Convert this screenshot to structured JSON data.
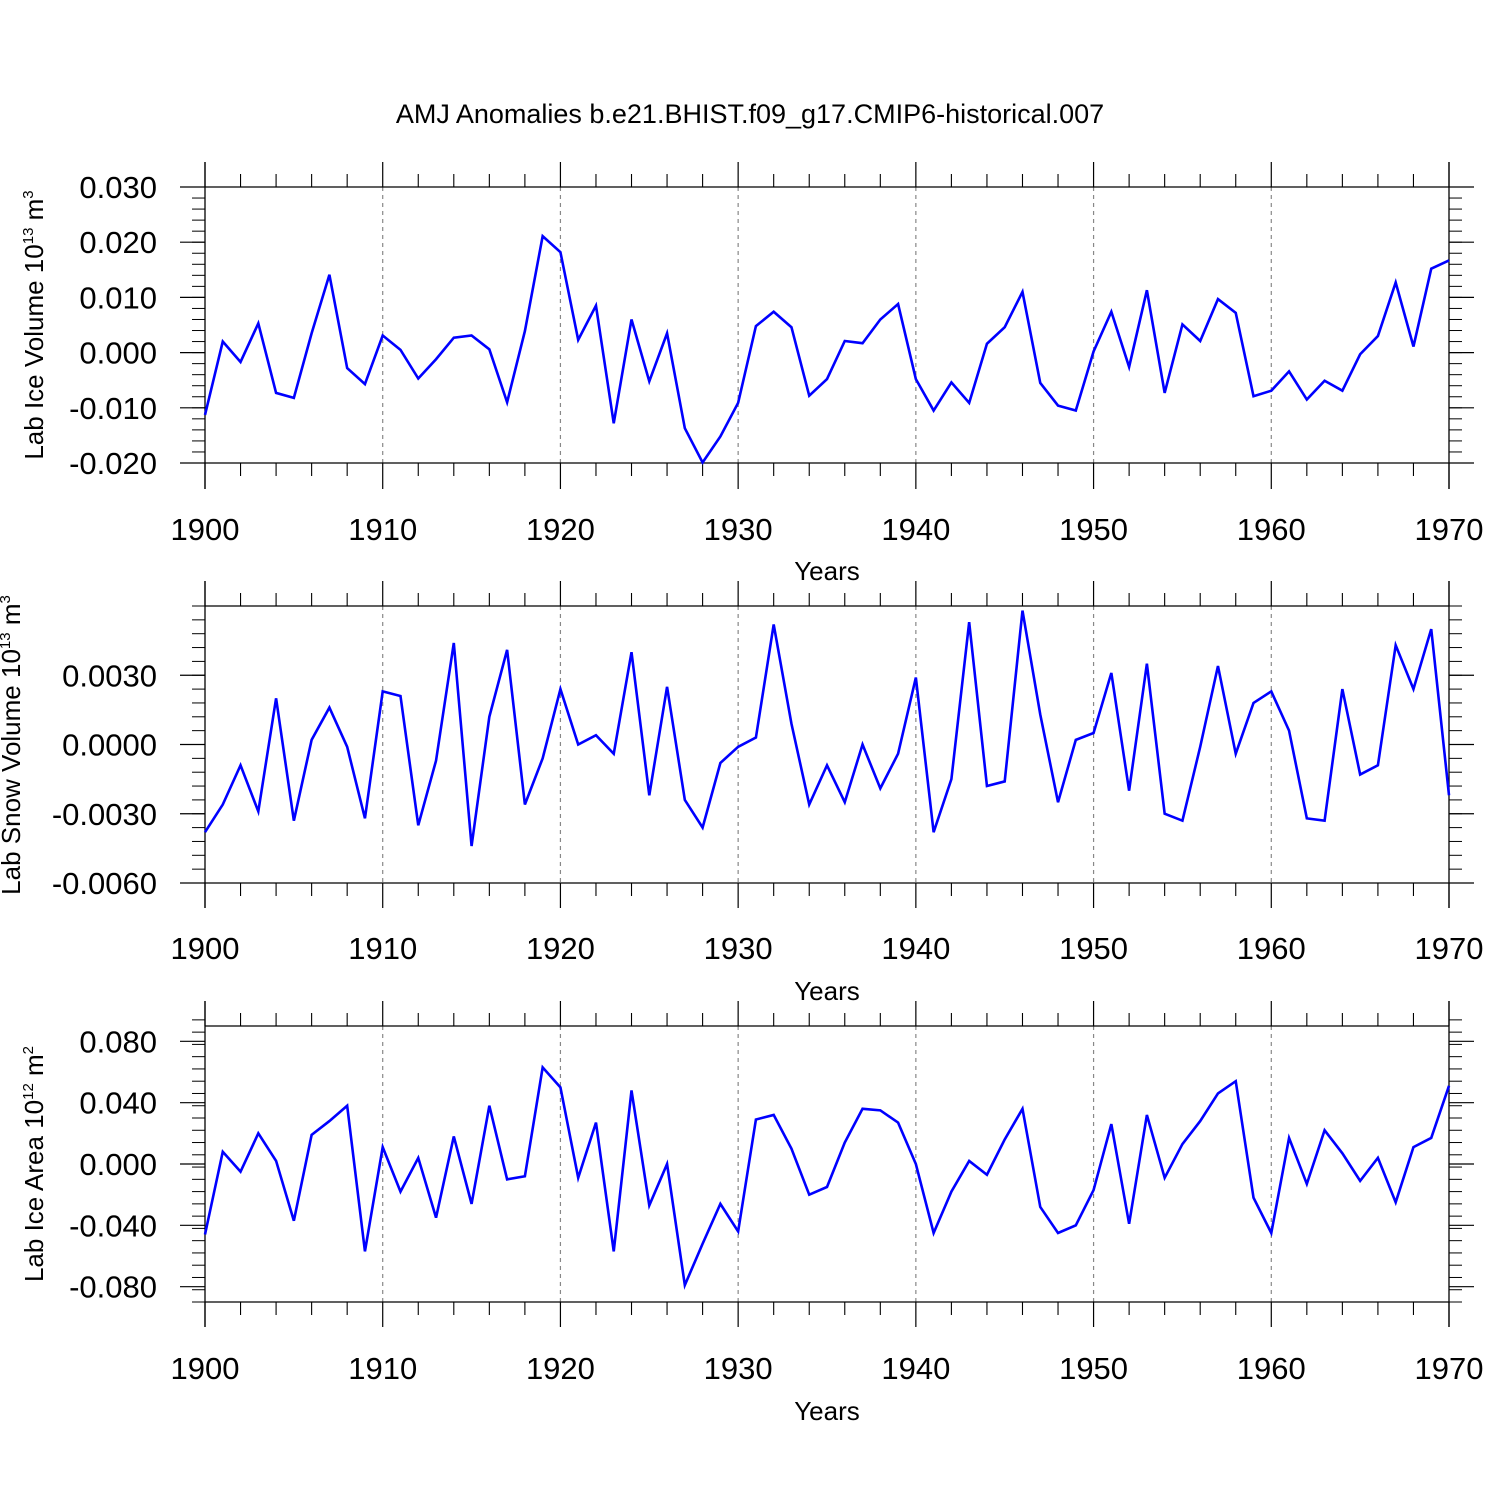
{
  "title": "AMJ Anomalies b.e21.BHIST.f09_g17.CMIP6-historical.007",
  "colors": {
    "line": "#0000ff",
    "axis": "#000000",
    "grid": "#888888"
  },
  "chart_data": [
    {
      "type": "line",
      "xlabel": "Years",
      "ylabel": {
        "main": "Lab Ice Volume 10",
        "exp": "13",
        "unit": " m",
        "unit_exp": "3"
      },
      "xlim": [
        1900,
        1970
      ],
      "ylim": [
        -0.02,
        0.03
      ],
      "x_ticks": [
        "1900",
        "1910",
        "1920",
        "1930",
        "1940",
        "1950",
        "1960",
        "1970"
      ],
      "y_tick_values": [
        -0.02,
        -0.01,
        0.0,
        0.01,
        0.02,
        0.03
      ],
      "y_tick_labels": [
        "-0.020",
        "-0.010",
        "0.000",
        "0.010",
        "0.020",
        "0.030"
      ],
      "y_minor_step": 0.002,
      "x_start": 1900,
      "series": [
        {
          "name": "Lab Ice Volume",
          "values": [
            -0.0113,
            0.002,
            -0.0017,
            0.0053,
            -0.0073,
            -0.0082,
            0.0035,
            0.0141,
            -0.0028,
            -0.0057,
            0.0031,
            0.0005,
            -0.0047,
            -0.0012,
            0.0027,
            0.0031,
            0.0006,
            -0.009,
            0.0039,
            0.0211,
            0.0182,
            0.0023,
            0.0085,
            -0.0128,
            0.006,
            -0.0052,
            0.0035,
            -0.0137,
            -0.0199,
            -0.0152,
            -0.0091,
            0.0048,
            0.0074,
            0.0046,
            -0.0078,
            -0.0048,
            0.0021,
            0.0017,
            0.006,
            0.0088,
            -0.0048,
            -0.0105,
            -0.0054,
            -0.0091,
            0.0016,
            0.0046,
            0.011,
            -0.0055,
            -0.0096,
            -0.0105,
            0.0002,
            0.0074,
            -0.0026,
            0.0113,
            -0.0073,
            0.0051,
            0.0021,
            0.0097,
            0.0072,
            -0.0079,
            -0.0069,
            -0.0034,
            -0.0085,
            -0.0051,
            -0.0069,
            -0.0003,
            0.003,
            0.0127,
            0.0011,
            0.0152,
            0.0167
          ]
        }
      ]
    },
    {
      "type": "line",
      "xlabel": "Years",
      "ylabel": {
        "main": "Lab Snow Volume 10",
        "exp": "13",
        "unit": " m",
        "unit_exp": "3"
      },
      "xlim": [
        1900,
        1970
      ],
      "ylim": [
        -0.006,
        0.006
      ],
      "x_ticks": [
        "1900",
        "1910",
        "1920",
        "1930",
        "1940",
        "1950",
        "1960",
        "1970"
      ],
      "y_tick_values": [
        -0.006,
        -0.003,
        0.0,
        0.003
      ],
      "y_tick_labels": [
        "-0.0060",
        "-0.0030",
        "0.0000",
        "0.0030"
      ],
      "y_minor_step": 0.0006,
      "x_start": 1900,
      "series": [
        {
          "name": "Lab Snow Volume",
          "values": [
            -0.0038,
            -0.0026,
            -0.0009,
            -0.0029,
            0.002,
            -0.0033,
            0.0002,
            0.0016,
            -0.0001,
            -0.0032,
            0.0023,
            0.0021,
            -0.0035,
            -0.0007,
            0.0044,
            -0.0044,
            0.0012,
            0.0041,
            -0.0026,
            -0.0006,
            0.0024,
            0.0,
            0.0004,
            -0.0004,
            0.004,
            -0.0022,
            0.0025,
            -0.0024,
            -0.0036,
            -0.0008,
            -0.0001,
            0.0003,
            0.0052,
            0.0009,
            -0.0026,
            -0.0009,
            -0.0025,
            0.0,
            -0.0019,
            -0.0004,
            0.0029,
            -0.0038,
            -0.0015,
            0.0053,
            -0.0018,
            -0.0016,
            0.0058,
            0.0013,
            -0.0025,
            0.0002,
            0.0005,
            0.0031,
            -0.002,
            0.0035,
            -0.003,
            -0.0033,
            -0.0001,
            0.0034,
            -0.0004,
            0.0018,
            0.0023,
            0.0006,
            -0.0032,
            -0.0033,
            0.0024,
            -0.0013,
            -0.0009,
            0.0043,
            0.0024,
            0.005,
            -0.0022
          ]
        }
      ]
    },
    {
      "type": "line",
      "xlabel": "Years",
      "ylabel": {
        "main": "Lab Ice Area 10",
        "exp": "12",
        "unit": " m",
        "unit_exp": "2"
      },
      "xlim": [
        1900,
        1970
      ],
      "ylim": [
        -0.09,
        0.09
      ],
      "x_ticks": [
        "1900",
        "1910",
        "1920",
        "1930",
        "1940",
        "1950",
        "1960",
        "1970"
      ],
      "y_tick_values": [
        -0.08,
        -0.04,
        0.0,
        0.04,
        0.08
      ],
      "y_tick_labels": [
        "-0.080",
        "-0.040",
        "0.000",
        "0.040",
        "0.080"
      ],
      "y_minor_step": 0.008,
      "x_start": 1900,
      "series": [
        {
          "name": "Lab Ice Area",
          "values": [
            -0.046,
            0.008,
            -0.005,
            0.02,
            0.002,
            -0.037,
            0.019,
            0.028,
            0.038,
            -0.057,
            0.011,
            -0.018,
            0.004,
            -0.035,
            0.018,
            -0.026,
            0.038,
            -0.01,
            -0.008,
            0.063,
            0.05,
            -0.009,
            0.027,
            -0.057,
            0.048,
            -0.027,
            0.0,
            -0.079,
            -0.052,
            -0.026,
            -0.044,
            0.029,
            0.032,
            0.01,
            -0.02,
            -0.015,
            0.014,
            0.036,
            0.035,
            0.027,
            0.0,
            -0.045,
            -0.018,
            0.002,
            -0.007,
            0.016,
            0.036,
            -0.028,
            -0.045,
            -0.04,
            -0.017,
            0.026,
            -0.039,
            0.032,
            -0.009,
            0.013,
            0.028,
            0.046,
            0.054,
            -0.022,
            -0.045,
            0.017,
            -0.013,
            0.022,
            0.007,
            -0.011,
            0.004,
            -0.025,
            0.011,
            0.017,
            0.051
          ]
        }
      ]
    }
  ]
}
